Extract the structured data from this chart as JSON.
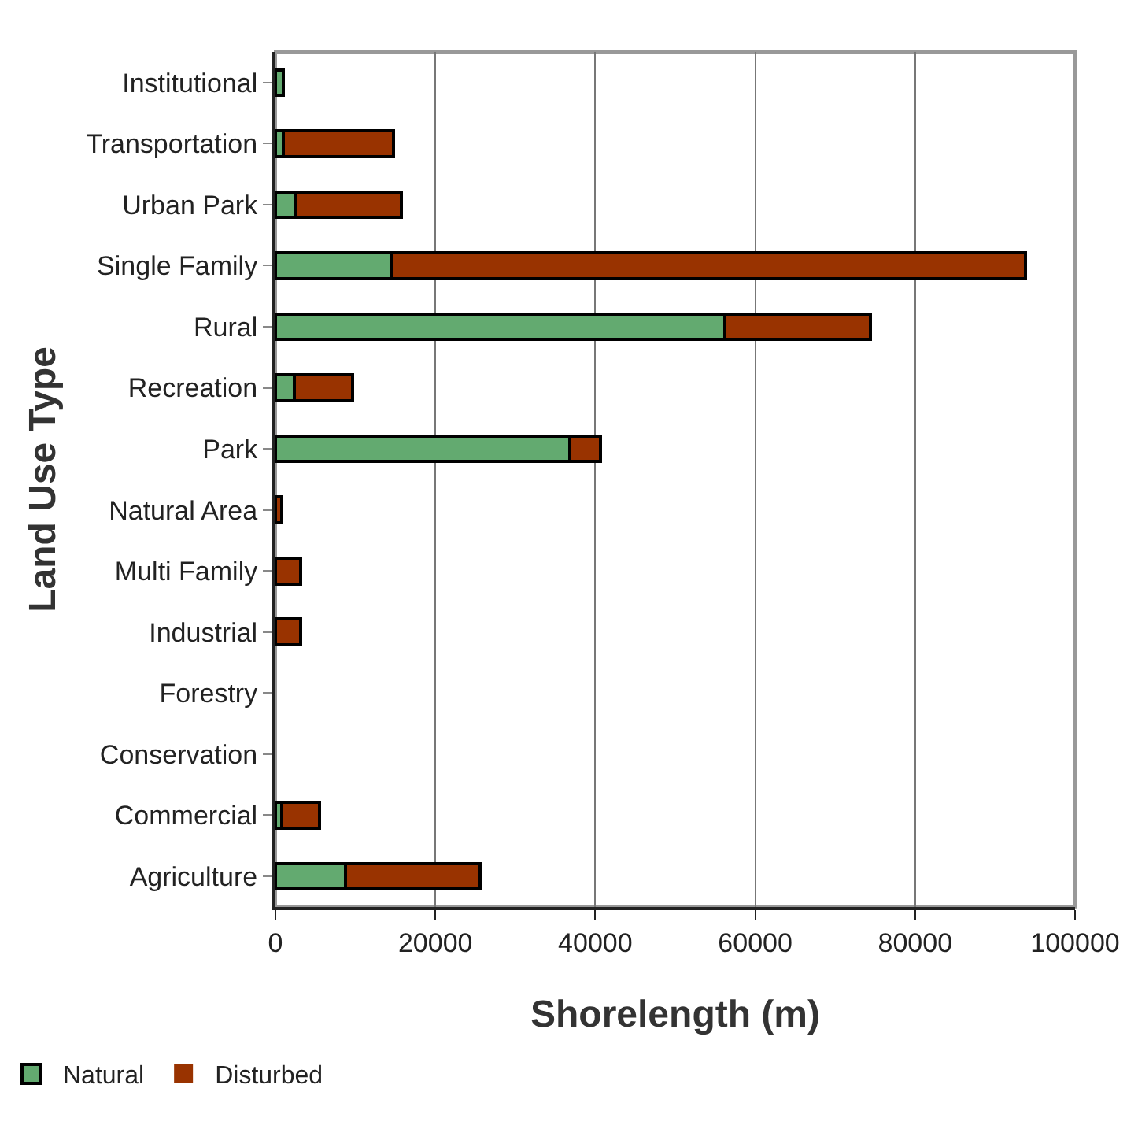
{
  "chart_data": {
    "type": "bar",
    "orientation": "horizontal",
    "stacked": true,
    "categories": [
      "Institutional",
      "Transportation",
      "Urban Park",
      "Single Family",
      "Rural",
      "Recreation",
      "Park",
      "Natural Area",
      "Multi Family",
      "Industrial",
      "Forestry",
      "Conservation",
      "Commercial",
      "Agriculture"
    ],
    "series": [
      {
        "name": "Natural",
        "color": "#63aa70",
        "values": [
          1000,
          1000,
          2600,
          14500,
          56200,
          2400,
          36800,
          null,
          null,
          null,
          0,
          0,
          800,
          8800
        ]
      },
      {
        "name": "Disturbed",
        "color": "#993300",
        "values": [
          0,
          13800,
          13100,
          79300,
          18200,
          7200,
          3800,
          800,
          3100,
          3100,
          0,
          0,
          4700,
          16800
        ]
      }
    ],
    "xlim": [
      0,
      100000
    ],
    "xticks": [
      0,
      20000,
      40000,
      60000,
      80000,
      100000
    ],
    "xlabel": "Shorelength (m)",
    "ylabel": "Land Use Type",
    "grid": "x",
    "legend": "bottom left"
  }
}
